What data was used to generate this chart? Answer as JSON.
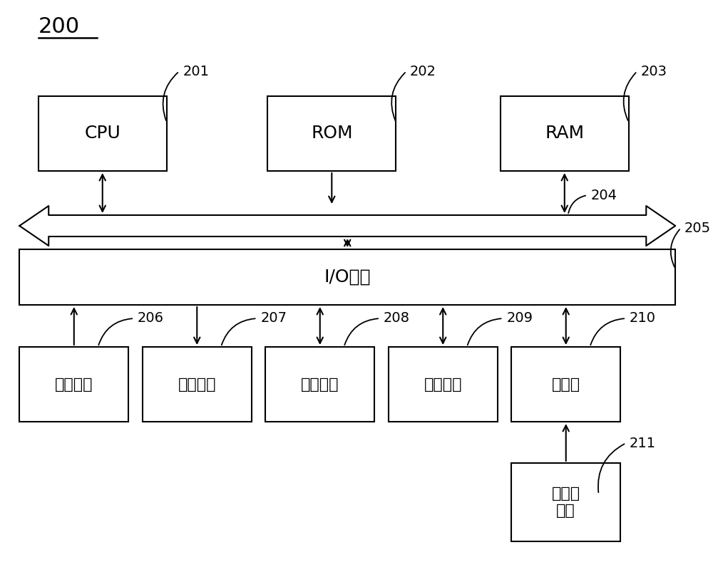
{
  "bg_color": "#ffffff",
  "line_color": "#000000",
  "fig_label": "200",
  "cpu_label": "CPU",
  "rom_label": "ROM",
  "ram_label": "RAM",
  "io_label": "I/O接口",
  "bot_labels": [
    "输入部分",
    "输出部分",
    "储存部分",
    "通信部分",
    "驱动器"
  ],
  "media_label": "可拆卸\n介质",
  "ref_ids_top": [
    "201",
    "202",
    "203"
  ],
  "ref_id_bus": "204",
  "ref_id_io": "205",
  "ref_ids_bot": [
    "206",
    "207",
    "208",
    "209",
    "210"
  ],
  "ref_id_media": "211",
  "font_size_box": 18,
  "font_size_label": 14,
  "font_size_title": 22
}
